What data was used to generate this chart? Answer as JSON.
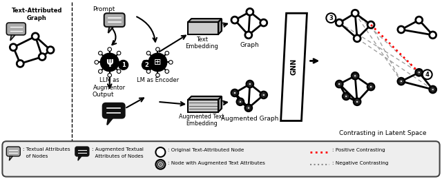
{
  "bg_color": "#ffffff",
  "section_labels": {
    "left": "Text-Attributed\nGraph",
    "prompt": "Prompt",
    "output": "Output",
    "llm": "LLM as\nAugmentor",
    "lm": "LM as Encoder",
    "text_emb": "Text\nEmbedding",
    "aug_text_emb": "Augmented Text\nEmbedding",
    "graph": "Graph",
    "aug_graph": "Augmented Graph",
    "gnn": "GNN",
    "contrast": "Contrasting in Latent Space"
  }
}
